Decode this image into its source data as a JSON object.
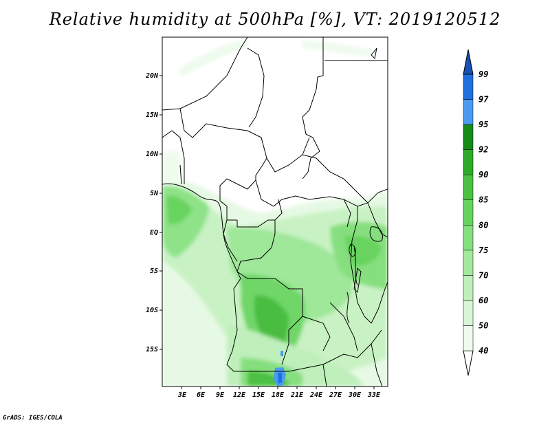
{
  "title": "Relative humidity at 500hPa [%], VT: 2019120512",
  "credit": "GrADS: IGES/COLA",
  "map": {
    "lat_ticks": [
      "20N",
      "15N",
      "10N",
      "5N",
      "EQ",
      "5S",
      "10S",
      "15S"
    ],
    "lon_ticks": [
      "3E",
      "6E",
      "9E",
      "12E",
      "15E",
      "18E",
      "21E",
      "24E",
      "27E",
      "30E",
      "33E"
    ]
  },
  "colorbar": {
    "levels": [
      "40",
      "50",
      "60",
      "70",
      "75",
      "80",
      "85",
      "90",
      "92",
      "95",
      "97",
      "99"
    ],
    "colors": [
      "#ffffff",
      "#eefbed",
      "#d9f6d6",
      "#bfefbb",
      "#a4e89e",
      "#86df7f",
      "#67d35f",
      "#4cc043",
      "#2eaa28",
      "#168a16",
      "#4b9af0",
      "#1f6fe0",
      "#1552b8"
    ]
  }
}
